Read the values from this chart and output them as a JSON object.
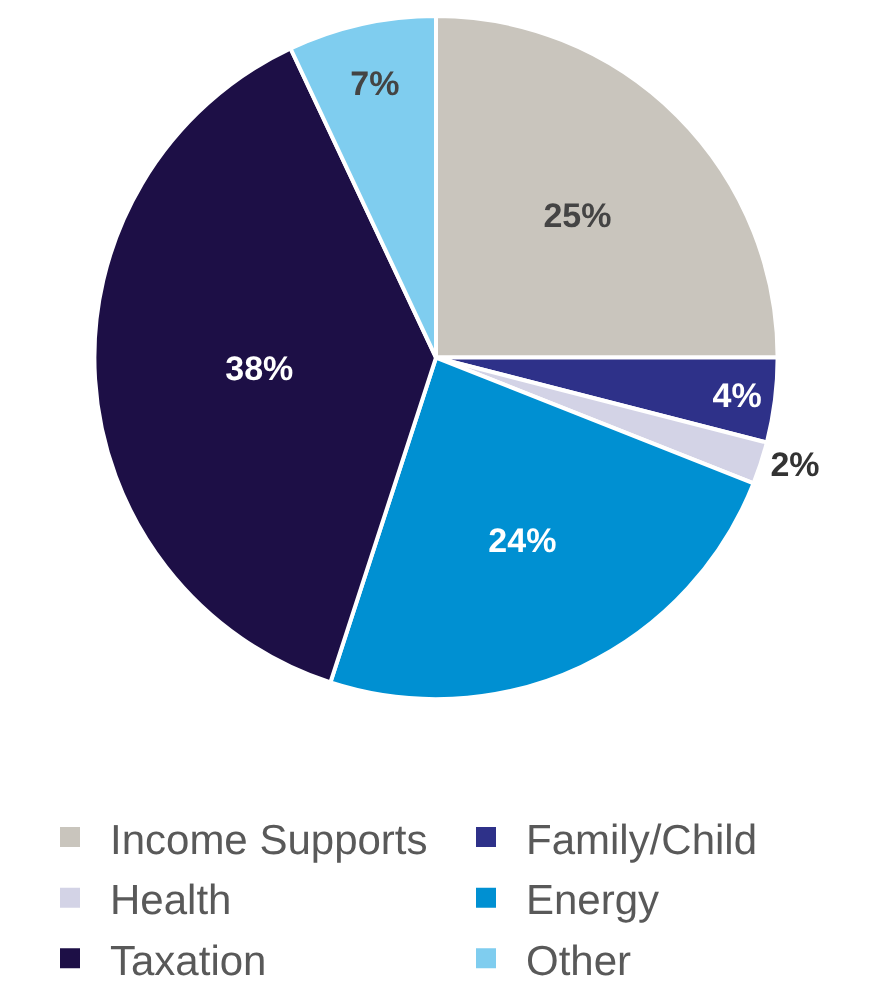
{
  "chart_data": {
    "type": "pie",
    "categories": [
      "Income Supports",
      "Family/Child",
      "Health",
      "Energy",
      "Taxation",
      "Other"
    ],
    "values": [
      25,
      4,
      2,
      24,
      38,
      7
    ],
    "colors": [
      "#c9c5bd",
      "#2e3189",
      "#d3d3e6",
      "#0090d2",
      "#1d0f46",
      "#7fcdef"
    ],
    "value_labels": [
      "25%",
      "4%",
      "2%",
      "24%",
      "38%",
      "7%"
    ],
    "legend": "bottom"
  }
}
